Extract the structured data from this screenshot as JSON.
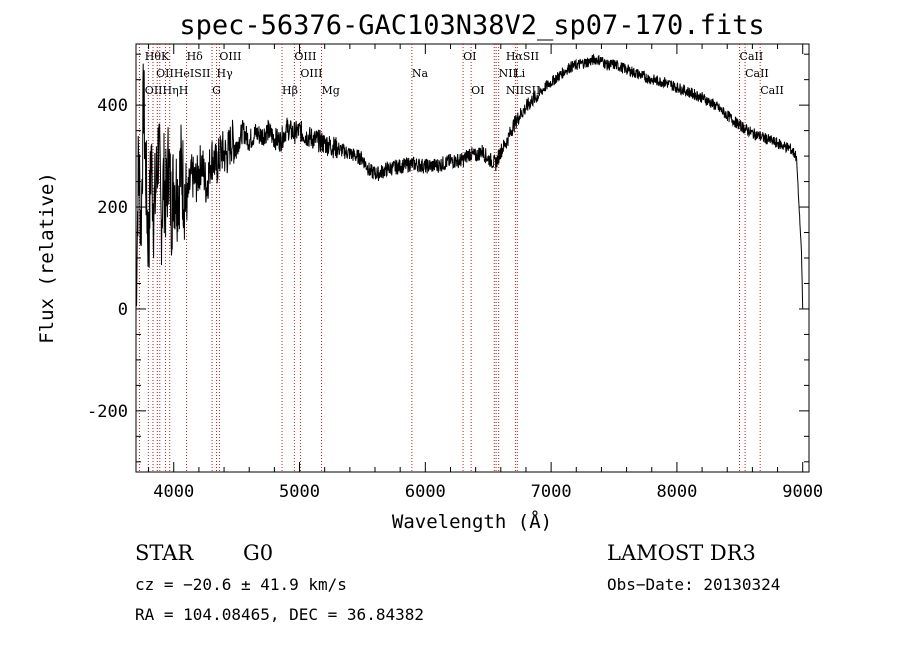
{
  "chart_data": {
    "type": "line",
    "title": "spec-56376-GAC103N38V2_sp07-170.fits",
    "xlabel": "Wavelength (Å)",
    "ylabel": "Flux (relative)",
    "xlim": [
      3700,
      9050
    ],
    "ylim": [
      -320,
      520
    ],
    "xticks": [
      4000,
      5000,
      6000,
      7000,
      8000,
      9000
    ],
    "yticks": [
      -200,
      0,
      200,
      400
    ],
    "series": [
      {
        "name": "flux",
        "x": [
          3700,
          3720,
          3740,
          3760,
          3780,
          3800,
          3820,
          3840,
          3860,
          3880,
          3900,
          3920,
          3940,
          3960,
          3980,
          4000,
          4030,
          4060,
          4100,
          4140,
          4180,
          4220,
          4260,
          4300,
          4340,
          4380,
          4420,
          4460,
          4500,
          4550,
          4600,
          4650,
          4700,
          4750,
          4800,
          4850,
          4900,
          4950,
          5000,
          5050,
          5100,
          5150,
          5200,
          5300,
          5400,
          5500,
          5560,
          5620,
          5700,
          5800,
          5900,
          6000,
          6100,
          6200,
          6300,
          6350,
          6400,
          6450,
          6500,
          6560,
          6600,
          6650,
          6700,
          6750,
          6800,
          6850,
          6900,
          6950,
          7000,
          7050,
          7100,
          7150,
          7200,
          7250,
          7300,
          7350,
          7400,
          7450,
          7500,
          7550,
          7600,
          7650,
          7700,
          7800,
          7900,
          8000,
          8100,
          8200,
          8300,
          8400,
          8500,
          8600,
          8700,
          8800,
          8900,
          8950,
          8990,
          9000
        ],
        "y": [
          10,
          300,
          160,
          420,
          250,
          120,
          300,
          190,
          240,
          330,
          170,
          260,
          210,
          300,
          190,
          250,
          230,
          280,
          200,
          260,
          250,
          290,
          240,
          300,
          280,
          310,
          300,
          330,
          320,
          350,
          330,
          345,
          340,
          350,
          335,
          330,
          355,
          345,
          350,
          340,
          335,
          330,
          325,
          315,
          305,
          295,
          270,
          265,
          275,
          280,
          285,
          280,
          282,
          290,
          292,
          305,
          300,
          310,
          295,
          285,
          310,
          330,
          360,
          380,
          395,
          410,
          420,
          435,
          445,
          455,
          465,
          475,
          478,
          482,
          485,
          490,
          488,
          478,
          480,
          475,
          470,
          465,
          460,
          450,
          445,
          435,
          425,
          415,
          400,
          380,
          360,
          345,
          335,
          325,
          315,
          300,
          110,
          0
        ]
      }
    ],
    "lines": [
      {
        "name": "HθK",
        "x": 3770,
        "row": 0
      },
      {
        "name": "Hδ",
        "x": 4102,
        "row": 0
      },
      {
        "name": "OIII",
        "x": 4363,
        "row": 0
      },
      {
        "name": "OIII",
        "x": 4959,
        "row": 0
      },
      {
        "name": "OI",
        "x": 6300,
        "row": 0
      },
      {
        "name": "HαSII",
        "x": 6640,
        "row": 0
      },
      {
        "name": "CaII",
        "x": 8498,
        "row": 0
      },
      {
        "name": "OIIHeISII",
        "x": 3860,
        "row": 1
      },
      {
        "name": "Hγ",
        "x": 4340,
        "row": 1
      },
      {
        "name": "OIII",
        "x": 5007,
        "row": 1
      },
      {
        "name": "NII",
        "x": 6583,
        "row": 1
      },
      {
        "name": "Li",
        "x": 6708,
        "row": 1
      },
      {
        "name": "CaII",
        "x": 8542,
        "row": 1
      },
      {
        "name": "OIIHηH",
        "x": 3770,
        "row": 2
      },
      {
        "name": "G",
        "x": 4305,
        "row": 2
      },
      {
        "name": "Hβ",
        "x": 4861,
        "row": 2
      },
      {
        "name": "Mg",
        "x": 5175,
        "row": 2
      },
      {
        "name": "Na",
        "x": 5893,
        "row": 1
      },
      {
        "name": "OI",
        "x": 6364,
        "row": 2
      },
      {
        "name": "NIISII",
        "x": 6640,
        "row": 2
      },
      {
        "name": "CaII",
        "x": 8662,
        "row": 2
      }
    ],
    "line_positions": [
      3727,
      3798,
      3835,
      3869,
      3889,
      3934,
      3968,
      4102,
      4305,
      4340,
      4363,
      4861,
      4959,
      5007,
      5175,
      5893,
      6300,
      6364,
      6548,
      6563,
      6583,
      6716,
      6731,
      8498,
      8542,
      8662
    ]
  },
  "footer": {
    "object_class": "STAR",
    "subclass": "G0",
    "survey": "LAMOST DR3",
    "redshift": "cz = −20.6 ± 41.9 km/s",
    "obs_date": "Obs−Date: 20130324",
    "coords": "RA = 104.08465, DEC =  36.84382"
  },
  "colors": {
    "axis": "#000000",
    "spectrum": "#000000",
    "line_marker": "#b22222",
    "background": "#ffffff"
  }
}
